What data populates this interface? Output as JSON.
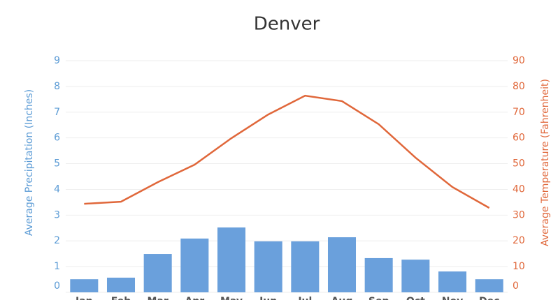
{
  "chart_data": {
    "type": "bar",
    "title": "Denver",
    "ylabel": "Average Precipitation (Inches)",
    "y2label": "Average Temperature (Fahrenheit)",
    "categories": [
      "Jan",
      "Feb",
      "Mar",
      "Apr",
      "May",
      "Jun",
      "Jul",
      "Aug",
      "Sep",
      "Oct",
      "Nov",
      "Dec"
    ],
    "series": [
      {
        "type": "bar",
        "axis": "y",
        "color": "#6aa0dc",
        "values": [
          0.51,
          0.57,
          1.49,
          2.09,
          2.52,
          1.98,
          1.98,
          2.14,
          1.33,
          1.27,
          0.81,
          0.51
        ]
      },
      {
        "type": "line",
        "axis": "y2",
        "color": "#e0673a",
        "values": [
          34.4,
          35.2,
          42.8,
          49.6,
          59.9,
          69.1,
          76.4,
          74.3,
          65.3,
          52.3,
          40.9,
          32.8
        ]
      }
    ],
    "ylim": [
      0,
      9
    ],
    "yticks": [
      0,
      1,
      2,
      3,
      4,
      5,
      6,
      7,
      8,
      9
    ],
    "y2lim": [
      0,
      90
    ],
    "y2ticks": [
      0,
      10,
      20,
      30,
      40,
      50,
      60,
      70,
      80,
      90
    ],
    "ycolor": "#5b9bd5",
    "y2color": "#e0673a",
    "grid": true
  }
}
